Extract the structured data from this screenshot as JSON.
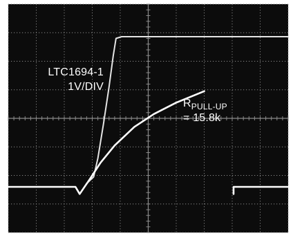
{
  "chart_data": {
    "type": "line",
    "title": "",
    "xlabel": "",
    "ylabel": "",
    "grid": true,
    "grid_divisions": {
      "x": 10,
      "y": 8
    },
    "xlim": [
      0,
      10
    ],
    "ylim": [
      0,
      8
    ],
    "colors": {
      "screen": "#0c0c0c",
      "grid": "#8a8a8a",
      "trace": "#ffffff",
      "trace_fast": "#e4e4e4"
    },
    "series": [
      {
        "x": [
          0,
          2.4,
          2.55,
          2.8,
          3.05,
          3.2,
          3.4,
          3.6,
          3.75,
          3.85,
          4.05,
          10
        ],
        "y": [
          1.6,
          1.6,
          1.35,
          1.72,
          1.95,
          2.6,
          3.8,
          5.1,
          6.2,
          6.8,
          6.86,
          6.86
        ]
      },
      {
        "x": [
          0,
          2.4,
          2.55,
          2.9,
          3.3,
          3.8,
          4.5,
          5.2,
          6.0,
          7.0,
          8.0,
          8.45,
          10
        ],
        "y": [
          1.6,
          1.6,
          1.35,
          1.85,
          2.45,
          3.05,
          3.7,
          4.15,
          4.55,
          4.95,
          5.3,
          5.42,
          5.42
        ],
        "gap_x": [
          7.9,
          8.05
        ]
      }
    ],
    "annotations": {
      "comparator": {
        "name": "LTC1694-1",
        "scale": "1V/DIV"
      },
      "pullup": {
        "symbol": "R",
        "subscript": "PULL-UP",
        "value": "= 15.8k"
      }
    }
  }
}
